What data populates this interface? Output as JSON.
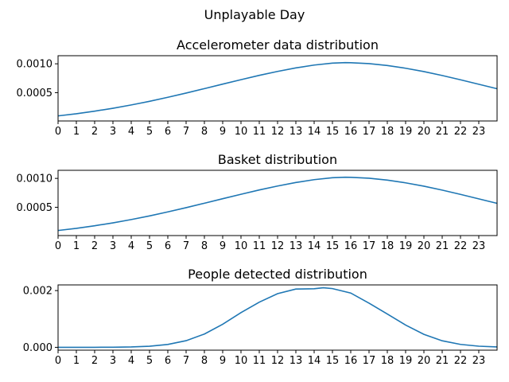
{
  "figure": {
    "suptitle": "Unplayable Day"
  },
  "chart_data": [
    {
      "type": "line",
      "title": "Accelerometer data distribution",
      "xlabel": "",
      "ylabel": "",
      "xlim": [
        0,
        24
      ],
      "ylim": [
        1e-05,
        0.00114
      ],
      "x_ticks": [
        "0",
        "1",
        "2",
        "3",
        "4",
        "5",
        "6",
        "7",
        "8",
        "9",
        "10",
        "11",
        "12",
        "13",
        "14",
        "15",
        "16",
        "17",
        "18",
        "19",
        "20",
        "21",
        "22",
        "23"
      ],
      "y_ticks": [
        0.0005,
        0.001
      ],
      "y_tick_labels": [
        "0.0005",
        "0.0010"
      ],
      "grid": false,
      "line_color": "#1f77b4",
      "series": [
        {
          "x": [
            0,
            1,
            2,
            3,
            4,
            5,
            6,
            7,
            8,
            9,
            10,
            11,
            12,
            13,
            14,
            15,
            15.7,
            16,
            17,
            18,
            19,
            20,
            21,
            22,
            23,
            24
          ],
          "y": [
            9.8e-05,
            0.000135,
            0.00018,
            0.00023,
            0.000287,
            0.00035,
            0.00042,
            0.000493,
            0.00057,
            0.000648,
            0.000725,
            0.0008,
            0.000868,
            0.000929,
            0.000978,
            0.001012,
            0.00102,
            0.001018,
            0.001003,
            0.00097,
            0.000923,
            0.000865,
            0.000797,
            0.000723,
            0.000646,
            0.000568
          ]
        }
      ]
    },
    {
      "type": "line",
      "title": "Basket distribution",
      "xlabel": "",
      "ylabel": "",
      "xlim": [
        0,
        24
      ],
      "ylim": [
        1e-05,
        0.00114
      ],
      "x_ticks": [
        "0",
        "1",
        "2",
        "3",
        "4",
        "5",
        "6",
        "7",
        "8",
        "9",
        "10",
        "11",
        "12",
        "13",
        "14",
        "15",
        "16",
        "17",
        "18",
        "19",
        "20",
        "21",
        "22",
        "23"
      ],
      "y_ticks": [
        0.0005,
        0.001
      ],
      "y_tick_labels": [
        "0.0005",
        "0.0010"
      ],
      "grid": false,
      "line_color": "#1f77b4",
      "series": [
        {
          "x": [
            0,
            1,
            2,
            3,
            4,
            5,
            6,
            7,
            8,
            9,
            10,
            11,
            12,
            13,
            14,
            15,
            15.7,
            16,
            17,
            18,
            19,
            20,
            21,
            22,
            23,
            24
          ],
          "y": [
            9.8e-05,
            0.000135,
            0.00018,
            0.00023,
            0.000287,
            0.00035,
            0.00042,
            0.000493,
            0.00057,
            0.000648,
            0.000725,
            0.0008,
            0.000868,
            0.000929,
            0.000978,
            0.001012,
            0.00102,
            0.001018,
            0.001003,
            0.00097,
            0.000923,
            0.000865,
            0.000797,
            0.000723,
            0.000646,
            0.000568
          ]
        }
      ]
    },
    {
      "type": "line",
      "title": "People detected distribution",
      "xlabel": "",
      "ylabel": "",
      "xlim": [
        0,
        24
      ],
      "ylim": [
        -0.0001,
        0.0022
      ],
      "x_ticks": [
        "0",
        "1",
        "2",
        "3",
        "4",
        "5",
        "6",
        "7",
        "8",
        "9",
        "10",
        "11",
        "12",
        "13",
        "14",
        "15",
        "16",
        "17",
        "18",
        "19",
        "20",
        "21",
        "22",
        "23"
      ],
      "y_ticks": [
        0.0,
        0.002
      ],
      "y_tick_labels": [
        "0.000",
        "0.002"
      ],
      "grid": false,
      "line_color": "#1f77b4",
      "series": [
        {
          "x": [
            0,
            1,
            2,
            3,
            4,
            5,
            6,
            7,
            8,
            9,
            10,
            11,
            12,
            13,
            14,
            14.5,
            15,
            16,
            17,
            18,
            19,
            20,
            21,
            22,
            23,
            24
          ],
          "y": [
            1e-07,
            3e-07,
            1e-06,
            4e-06,
            1.3e-05,
            3.9e-05,
            0.000101,
            0.000234,
            0.000469,
            0.000814,
            0.001223,
            0.001591,
            0.001892,
            0.002054,
            0.002066,
            0.0021,
            0.00207,
            0.001914,
            0.001557,
            0.001176,
            0.000786,
            0.000458,
            0.000231,
            0.000103,
            4e-05,
            1.3e-05
          ]
        }
      ]
    }
  ]
}
